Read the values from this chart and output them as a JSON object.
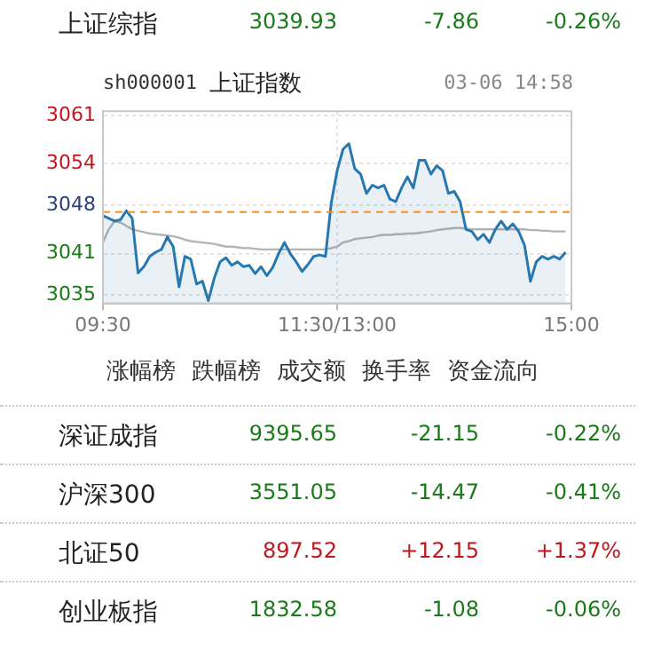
{
  "chart_data": {
    "type": "line",
    "title": "上证指数",
    "subtitle": "sh000001",
    "categories": [
      "09:30",
      null,
      null,
      null,
      null,
      null,
      null,
      null,
      null,
      null,
      null,
      null,
      null,
      null,
      null,
      null,
      null,
      null,
      null,
      null,
      null,
      null,
      null,
      null,
      null,
      null,
      null,
      null,
      null,
      null,
      null,
      null,
      null,
      null,
      null,
      null,
      null,
      null,
      null,
      null,
      "11:30/13:00",
      null,
      null,
      null,
      null,
      null,
      null,
      null,
      null,
      null,
      null,
      null,
      null,
      null,
      null,
      null,
      null,
      null,
      null,
      null,
      null,
      null,
      null,
      null,
      null,
      null,
      null,
      null,
      null,
      null,
      null,
      null,
      null,
      null,
      null,
      null,
      null,
      null,
      null,
      null,
      "15:00"
    ],
    "ylim": [
      3033.8,
      3061.6
    ],
    "yticks": [
      3035,
      3041,
      3048,
      3054,
      3061
    ],
    "grid": true,
    "marker": "none",
    "ref_lines": [
      {
        "axis": "y",
        "value": 3047,
        "color": "#f0932b",
        "line_style": "dashed"
      }
    ],
    "series": [
      {
        "type": "area",
        "color": "#2878b0",
        "values": [
          3046.5,
          3046.1,
          3045.7,
          3045.9,
          3047.2,
          3046.1,
          3038.2,
          3039.1,
          3040.6,
          3041.2,
          3041.6,
          3043.4,
          3042.0,
          3036.2,
          3040.6,
          3040.2,
          3036.6,
          3037.0,
          3034.2,
          3037.4,
          3039.8,
          3040.4,
          3039.3,
          3039.8,
          3039.1,
          3039.3,
          3038.1,
          3039.1,
          3037.8,
          3039.0,
          3041.0,
          3042.6,
          3041.0,
          3039.8,
          3038.4,
          3039.4,
          3040.6,
          3040.8,
          3040.6,
          3048.4,
          3053.0,
          3056.1,
          3056.9,
          3053.3,
          3052.5,
          3049.7,
          3050.9,
          3050.5,
          3050.9,
          3048.9,
          3048.5,
          3050.5,
          3052.1,
          3050.5,
          3054.5,
          3054.5,
          3052.5,
          3053.7,
          3053.0,
          3049.7,
          3050.0,
          3048.5,
          3044.5,
          3044.2,
          3043.0,
          3043.8,
          3042.6,
          3044.5,
          3045.7,
          3044.5,
          3045.3,
          3044.2,
          3042.2,
          3037.0,
          3039.8,
          3040.6,
          3040.2,
          3040.6,
          3040.2,
          3041.2,
          null
        ]
      },
      {
        "type": "line",
        "color": "#b4b4b4",
        "values": [
          3042.6,
          3044.5,
          3045.7,
          3045.5,
          3045.0,
          3044.5,
          3044.3,
          3044.1,
          3043.9,
          3043.8,
          3043.7,
          3043.6,
          3043.5,
          3043.3,
          3043.0,
          3042.8,
          3042.7,
          3042.6,
          3042.5,
          3042.4,
          3042.2,
          3042.0,
          3042.0,
          3041.9,
          3041.8,
          3041.8,
          3041.7,
          3041.6,
          3041.6,
          3041.6,
          3041.6,
          3041.6,
          3041.6,
          3041.6,
          3041.6,
          3041.6,
          3041.6,
          3041.6,
          3041.6,
          3041.8,
          3042.0,
          3042.6,
          3042.8,
          3043.1,
          3043.2,
          3043.3,
          3043.4,
          3043.6,
          3043.7,
          3043.7,
          3043.8,
          3043.8,
          3043.9,
          3043.9,
          3044.0,
          3044.1,
          3044.2,
          3044.4,
          3044.5,
          3044.6,
          3044.7,
          3044.7,
          3044.6,
          3044.5,
          3044.5,
          3044.5,
          3044.5,
          3044.5,
          3044.5,
          3044.5,
          3044.5,
          3044.5,
          3044.5,
          3044.4,
          3044.4,
          3044.3,
          3044.3,
          3044.2,
          3044.2,
          3044.2,
          null
        ]
      }
    ],
    "annotations": [
      "上证综指",
      "3039.93",
      "-7.86",
      "-0.26%",
      "03-06 14:58",
      "涨幅榜",
      "跌幅榜",
      "成交额",
      "换手率",
      "资金流向",
      "深证成指",
      "9395.65",
      "-21.15",
      "-0.22%",
      "沪深300",
      "3551.05",
      "-14.47",
      "-0.41%",
      "北证50",
      "897.52",
      "+12.15",
      "+1.37%",
      "创业板指",
      "1832.58",
      "-1.08",
      "-0.06%"
    ]
  }
}
